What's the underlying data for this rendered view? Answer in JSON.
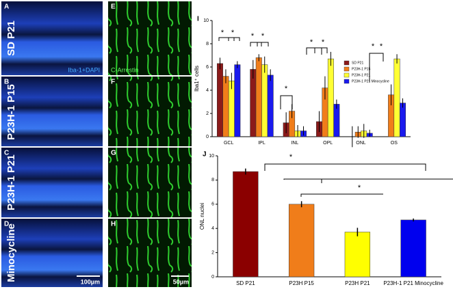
{
  "panels": {
    "A": "A",
    "B": "B",
    "C": "C",
    "D": "D",
    "E": "E",
    "F": "F",
    "G": "G",
    "H": "H",
    "row_labels": [
      "SD P21",
      "P23H-1 P15",
      "P23H-1 P21",
      "Minocycline"
    ],
    "stain_left": "Iba-1+DAPI",
    "stain_right": "C-Arrestin",
    "scale_left": "100µm",
    "scale_right": "50µm"
  },
  "chart_data": [
    {
      "type": "bar",
      "panel": "I",
      "ylabel": "Iba1⁺ cells",
      "categories": [
        "GCL",
        "IPL",
        "INL",
        "OPL",
        "ONL",
        "OS"
      ],
      "ylim": [
        0,
        10
      ],
      "yticks": [
        0,
        2,
        4,
        6,
        8,
        10
      ],
      "legend": "upper right",
      "series": [
        {
          "name": "SD P21",
          "color": "#8b1a1a",
          "values": [
            6.3,
            5.8,
            1.2,
            1.3,
            0,
            0
          ],
          "errors": [
            0.5,
            0.8,
            0.9,
            0.9,
            0.9,
            0
          ]
        },
        {
          "name": "P23H-1 P15",
          "color": "#f07d1a",
          "values": [
            5.2,
            6.8,
            2.2,
            4.2,
            0.4,
            3.6
          ],
          "errors": [
            0.6,
            0.3,
            0.6,
            1.0,
            0.5,
            0.9
          ]
        },
        {
          "name": "P23H-1 P21",
          "color": "#ffff33",
          "values": [
            4.8,
            6.2,
            0.5,
            6.7,
            0.5,
            6.7
          ],
          "errors": [
            0.7,
            0.7,
            0.5,
            0.6,
            0.6,
            0.4
          ]
        },
        {
          "name": "P23H-1 P21 Minocycline",
          "color": "#1a1aee",
          "values": [
            6.2,
            5.3,
            0.5,
            2.8,
            0.3,
            2.9
          ],
          "errors": [
            0.3,
            0.5,
            0.4,
            0.4,
            0.3,
            0.4
          ]
        }
      ],
      "annotations": [
        "*",
        "*",
        "*",
        "*",
        "*",
        "*",
        "*",
        "*",
        "*"
      ]
    },
    {
      "type": "bar",
      "panel": "J",
      "ylabel": "ONL nuclei",
      "categories": [
        "SD P21",
        "P23H P15",
        "P23H P21",
        "P23H-1 P21 Minocycline"
      ],
      "ylim": [
        0,
        10
      ],
      "yticks": [
        0,
        2,
        4,
        6,
        8,
        10
      ],
      "colors": [
        "#8b0000",
        "#f07d1a",
        "#ffff00",
        "#0000ee"
      ],
      "values": [
        8.7,
        6.0,
        3.7,
        4.7
      ],
      "errors": [
        0.25,
        0.25,
        0.35,
        0.12
      ],
      "annotations": [
        "*",
        "*"
      ]
    }
  ]
}
